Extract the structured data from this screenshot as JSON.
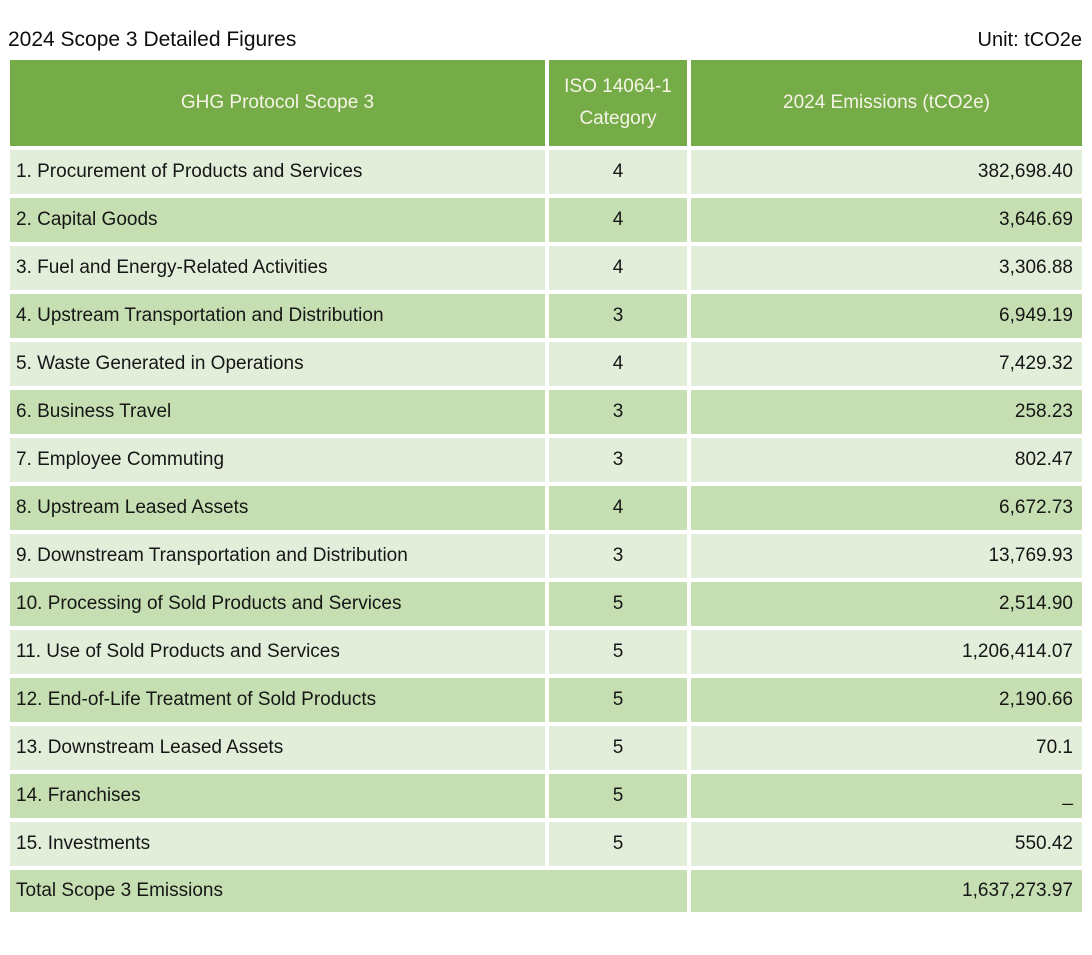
{
  "page": {
    "title": "2024 Scope 3 Detailed Figures",
    "unit_label": "Unit: tCO2e"
  },
  "colors": {
    "header_bg": "#75AC48",
    "header_text": "#F6F3E7",
    "row_light_bg": "#E2EEDA",
    "row_dark_bg": "#C6DFB2",
    "total_row_bg": "#C6DFB2",
    "body_text": "#161616"
  },
  "table": {
    "headers": {
      "col1": "GHG Protocol Scope 3",
      "col2_line1": "ISO 14064-1",
      "col2_line2": "Category",
      "col3": "2024 Emissions (tCO2e)"
    },
    "rows": [
      {
        "name": "1. Procurement of Products and Services",
        "category": "4",
        "value": "382,698.40"
      },
      {
        "name": "2. Capital Goods",
        "category": "4",
        "value": "3,646.69"
      },
      {
        "name": "3. Fuel and Energy-Related Activities",
        "category": "4",
        "value": "3,306.88"
      },
      {
        "name": "4. Upstream Transportation and Distribution",
        "category": "3",
        "value": "6,949.19"
      },
      {
        "name": "5. Waste Generated in Operations",
        "category": "4",
        "value": "7,429.32"
      },
      {
        "name": "6. Business Travel",
        "category": "3",
        "value": "258.23"
      },
      {
        "name": "7. Employee Commuting",
        "category": "3",
        "value": "802.47"
      },
      {
        "name": "8. Upstream Leased Assets",
        "category": "4",
        "value": "6,672.73"
      },
      {
        "name": "9. Downstream Transportation and Distribution",
        "category": "3",
        "value": "13,769.93"
      },
      {
        "name": "10. Processing of Sold Products and Services",
        "category": "5",
        "value": "2,514.90"
      },
      {
        "name": "11. Use of Sold Products and Services",
        "category": "5",
        "value": "1,206,414.07"
      },
      {
        "name": "12. End-of-Life Treatment of Sold Products",
        "category": "5",
        "value": "2,190.66"
      },
      {
        "name": "13. Downstream Leased Assets",
        "category": "5",
        "value": "70.1"
      },
      {
        "name": "14. Franchises",
        "category": "5",
        "value": "_"
      },
      {
        "name": "15. Investments",
        "category": "5",
        "value": "550.42"
      }
    ],
    "total": {
      "label": "Total Scope 3 Emissions",
      "value": "1,637,273.97"
    }
  },
  "chart_data": {
    "type": "table",
    "title": "2024 Scope 3 Detailed Figures",
    "unit": "tCO2e",
    "columns": [
      "GHG Protocol Scope 3",
      "ISO 14064-1 Category",
      "2024 Emissions (tCO2e)"
    ],
    "categories": [
      "1. Procurement of Products and Services",
      "2. Capital Goods",
      "3. Fuel and Energy-Related Activities",
      "4. Upstream Transportation and Distribution",
      "5. Waste Generated in Operations",
      "6. Business Travel",
      "7. Employee Commuting",
      "8. Upstream Leased Assets",
      "9. Downstream Transportation and Distribution",
      "10. Processing of Sold Products and Services",
      "11. Use of Sold Products and Services",
      "12. End-of-Life Treatment of Sold Products",
      "13. Downstream Leased Assets",
      "14. Franchises",
      "15. Investments"
    ],
    "iso_categories": [
      4,
      4,
      4,
      3,
      4,
      3,
      3,
      4,
      3,
      5,
      5,
      5,
      5,
      5,
      5
    ],
    "values": [
      382698.4,
      3646.69,
      3306.88,
      6949.19,
      7429.32,
      258.23,
      802.47,
      6672.73,
      13769.93,
      2514.9,
      1206414.07,
      2190.66,
      70.1,
      null,
      550.42
    ],
    "total": 1637273.97
  }
}
